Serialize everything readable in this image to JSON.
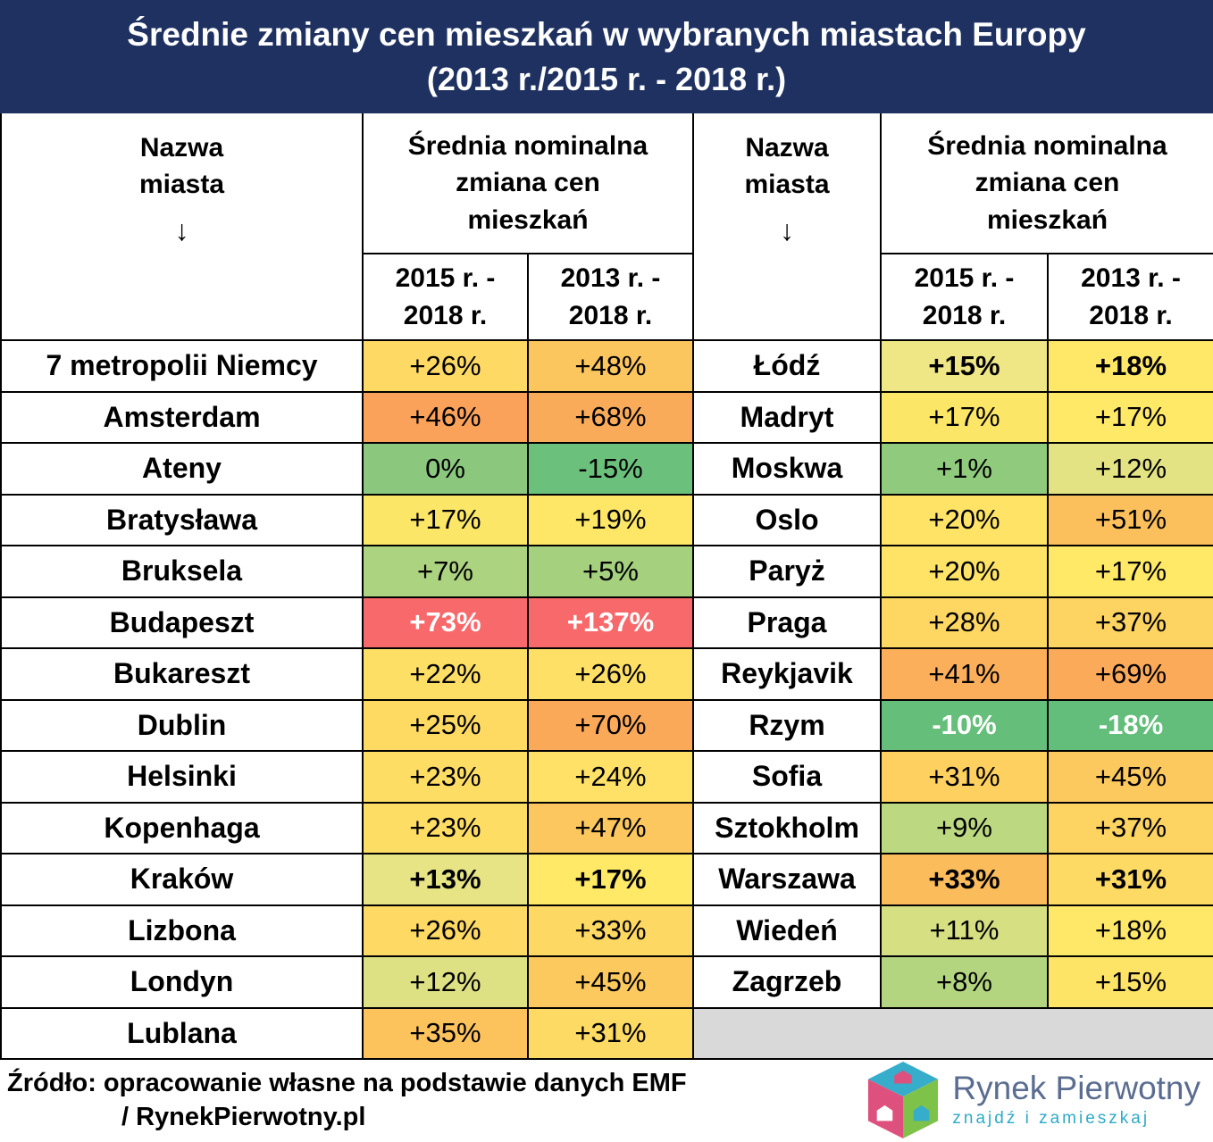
{
  "title": {
    "line1": "Średnie zmiany cen mieszkań w wybranych miastach Europy",
    "line2": "(2013 r./2015 r. - 2018 r.)"
  },
  "header": {
    "city_line1": "Nazwa",
    "city_line2": "miasta",
    "arrow": "↓",
    "group_col": "Średnia nominalna zmiana cen mieszkań",
    "sub_col1": "2015 r. - 2018 r.",
    "sub_col2": "2013 r. - 2018 r."
  },
  "chart_data": {
    "type": "table",
    "title": "Średnie zmiany cen mieszkań w wybranych miastach Europy (2013 r./2015 r. - 2018 r.)",
    "columns": [
      "Nazwa miasta",
      "2015 r. - 2018 r.",
      "2013 r. - 2018 r."
    ],
    "left_rows": [
      {
        "city": "7 metropolii Niemcy",
        "v1": "+26%",
        "c1": "#FED964",
        "v2": "+48%",
        "c2": "#FCC65E"
      },
      {
        "city": "Amsterdam",
        "v1": "+46%",
        "c1": "#FAA15A",
        "v2": "+68%",
        "c2": "#FAAB59"
      },
      {
        "city": "Ateny",
        "v1": "0%",
        "c1": "#8BC87D",
        "v2": "-15%",
        "c2": "#6BC07C"
      },
      {
        "city": "Bratysława",
        "v1": "+17%",
        "c1": "#FCE667",
        "v2": "+19%",
        "c2": "#FEE767"
      },
      {
        "city": "Bruksela",
        "v1": "+7%",
        "c1": "#ACD37F",
        "v2": "+5%",
        "c2": "#A5D17E"
      },
      {
        "city": "Budapeszt",
        "v1": "+73%",
        "c1": "#F8696B",
        "v2": "+137%",
        "c2": "#F8696B",
        "white": true
      },
      {
        "city": "Bukareszt",
        "v1": "+22%",
        "c1": "#FEDF65",
        "v2": "+26%",
        "c2": "#FEE066"
      },
      {
        "city": "Dublin",
        "v1": "+25%",
        "c1": "#FEDA63",
        "v2": "+70%",
        "c2": "#FAA959"
      },
      {
        "city": "Helsinki",
        "v1": "+23%",
        "c1": "#FEDD64",
        "v2": "+24%",
        "c2": "#FEE166"
      },
      {
        "city": "Kopenhaga",
        "v1": "+23%",
        "c1": "#FEDD64",
        "v2": "+47%",
        "c2": "#FCC75E"
      },
      {
        "city": "Kraków",
        "v1": "+13%",
        "c1": "#E6E484",
        "v2": "+17%",
        "c2": "#FFE967",
        "bold": true
      },
      {
        "city": "Lizbona",
        "v1": "+26%",
        "c1": "#FED964",
        "v2": "+33%",
        "c2": "#FDD862"
      },
      {
        "city": "Londyn",
        "v1": "+12%",
        "c1": "#DEE183",
        "v2": "+45%",
        "c2": "#FCC95E"
      },
      {
        "city": "Lublana",
        "v1": "+35%",
        "c1": "#FCC35D",
        "v2": "+31%",
        "c2": "#FDDA63"
      }
    ],
    "right_rows": [
      {
        "city": "Łódź",
        "v1": "+15%",
        "c1": "#EFE785",
        "v2": "+18%",
        "c2": "#FFE867",
        "bold": true
      },
      {
        "city": "Madryt",
        "v1": "+17%",
        "c1": "#FCE667",
        "v2": "+17%",
        "c2": "#FFE967"
      },
      {
        "city": "Moskwa",
        "v1": "+1%",
        "c1": "#90CA7D",
        "v2": "+12%",
        "c2": "#E3E383"
      },
      {
        "city": "Oslo",
        "v1": "+20%",
        "c1": "#FEE366",
        "v2": "+51%",
        "c2": "#FBC05C"
      },
      {
        "city": "Paryż",
        "v1": "+20%",
        "c1": "#FEE366",
        "v2": "+17%",
        "c2": "#FFE967"
      },
      {
        "city": "Praga",
        "v1": "+28%",
        "c1": "#FED763",
        "v2": "+37%",
        "c2": "#FDD461"
      },
      {
        "city": "Reykjavik",
        "v1": "+41%",
        "c1": "#FBAF5A",
        "v2": "+69%",
        "c2": "#FAAA59"
      },
      {
        "city": "Rzym",
        "v1": "-10%",
        "c1": "#66BE7B",
        "v2": "-18%",
        "c2": "#63BE7B",
        "white": true
      },
      {
        "city": "Sofia",
        "v1": "+31%",
        "c1": "#FDD060",
        "v2": "+45%",
        "c2": "#FCC95E"
      },
      {
        "city": "Sztokholm",
        "v1": "+9%",
        "c1": "#BCD880",
        "v2": "+37%",
        "c2": "#FDD461"
      },
      {
        "city": "Warszawa",
        "v1": "+33%",
        "c1": "#FBBC5B",
        "v2": "+31%",
        "c2": "#FDDA63",
        "bold": true
      },
      {
        "city": "Wiedeń",
        "v1": "+11%",
        "c1": "#D6DF82",
        "v2": "+18%",
        "c2": "#FFE867"
      },
      {
        "city": "Zagrzeb",
        "v1": "+8%",
        "c1": "#B3D57F",
        "v2": "+15%",
        "c2": "#FEE466"
      }
    ]
  },
  "footer": {
    "source_line1": "Źródło: opracowanie własne na podstawie danych EMF",
    "source_line2": "/ RynekPierwotny.pl",
    "logo_name": "Rynek Pierwotny",
    "logo_tagline": "znajdź i zamieszkaj"
  },
  "colors": {
    "title_bg": "#1E3160",
    "border": "#000000",
    "empty_cell": "#D9D9D9",
    "logo_teal": "#35ADCB",
    "logo_pink": "#DE517E",
    "logo_green": "#7EC24A",
    "logo_text": "#5A6C90"
  }
}
